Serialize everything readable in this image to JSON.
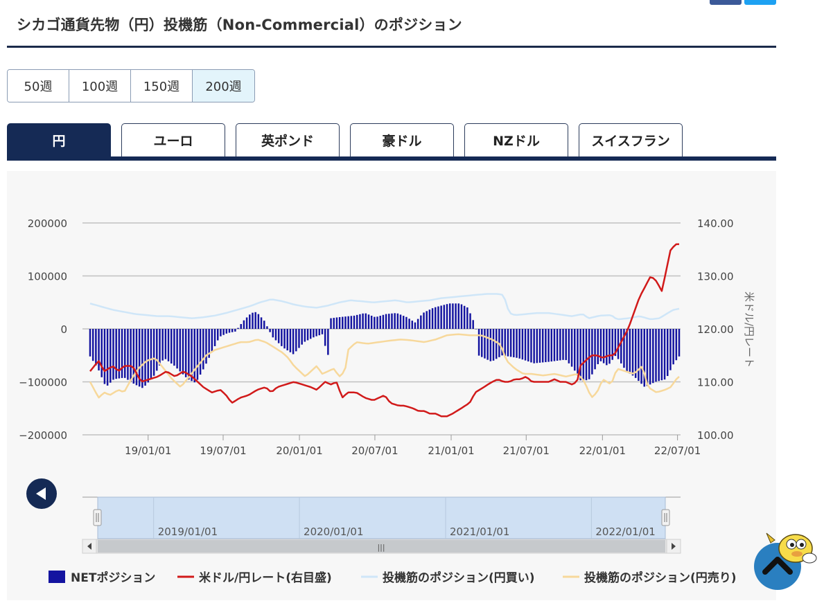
{
  "page": {
    "title": "シカゴ通貨先物（円）投機筋（Non-Commercial）のポジション"
  },
  "periods": [
    {
      "label": "50週",
      "active": false
    },
    {
      "label": "100週",
      "active": false
    },
    {
      "label": "150週",
      "active": false
    },
    {
      "label": "200週",
      "active": true
    }
  ],
  "tabs": [
    {
      "label": "円",
      "active": true
    },
    {
      "label": "ユーロ",
      "active": false
    },
    {
      "label": "英ポンド",
      "active": false
    },
    {
      "label": "豪ドル",
      "active": false
    },
    {
      "label": "NZドル",
      "active": false
    },
    {
      "label": "スイスフラン",
      "active": false
    }
  ],
  "colors": {
    "net": "#1414a0",
    "rate": "#d11a1a",
    "long": "#cfe6f8",
    "short": "#f7d89b",
    "navy": "#152a55",
    "grid": "#c0c0c0"
  },
  "chart_data": {
    "type": "bar+line",
    "grid": true,
    "legend_position": "bottom",
    "start_date": "2018-08-14",
    "weeks": 204,
    "x_ticks": [
      "19/01/01",
      "19/07/01",
      "20/01/01",
      "20/07/01",
      "21/01/01",
      "21/07/01",
      "22/01/01",
      "22/07/01"
    ],
    "y_left": {
      "min": -200000,
      "max": 200000,
      "ticks": [
        "200000",
        "100000",
        "0",
        "−100000",
        "−200000"
      ]
    },
    "y_right": {
      "min": 100,
      "max": 140,
      "ticks": [
        "140.00",
        "130.00",
        "120.00",
        "110.00",
        "100.00"
      ],
      "label": "米ドル/円レート"
    },
    "navigator_ticks": [
      "2019/01/01",
      "2020/01/01",
      "2021/01/01",
      "2022/01/01"
    ],
    "series": [
      {
        "name": "NETポジション",
        "type": "bar",
        "axis": "left",
        "keyframes": [
          [
            0,
            -52000
          ],
          [
            3,
            -75000
          ],
          [
            6,
            -110000
          ],
          [
            9,
            -95000
          ],
          [
            13,
            -92000
          ],
          [
            17,
            -105000
          ],
          [
            20,
            -112000
          ],
          [
            24,
            -90000
          ],
          [
            28,
            -55000
          ],
          [
            32,
            -70000
          ],
          [
            37,
            -95000
          ],
          [
            40,
            -102000
          ],
          [
            43,
            -75000
          ],
          [
            46,
            -45000
          ],
          [
            49,
            -15000
          ],
          [
            52,
            -8000
          ],
          [
            55,
            -5000
          ],
          [
            58,
            15000
          ],
          [
            61,
            30000
          ],
          [
            63,
            32000
          ],
          [
            66,
            15000
          ],
          [
            69,
            -15000
          ],
          [
            73,
            -35000
          ],
          [
            77,
            -48000
          ],
          [
            81,
            -25000
          ],
          [
            85,
            -15000
          ],
          [
            88,
            -10000
          ],
          [
            90,
            -55000
          ],
          [
            91,
            20000
          ],
          [
            94,
            22000
          ],
          [
            100,
            25000
          ],
          [
            104,
            30000
          ],
          [
            108,
            22000
          ],
          [
            112,
            28000
          ],
          [
            116,
            30000
          ],
          [
            120,
            22000
          ],
          [
            123,
            12000
          ],
          [
            126,
            30000
          ],
          [
            130,
            40000
          ],
          [
            136,
            48000
          ],
          [
            140,
            48000
          ],
          [
            143,
            40000
          ],
          [
            146,
            5000
          ],
          [
            147,
            -50000
          ],
          [
            152,
            -62000
          ],
          [
            156,
            -50000
          ],
          [
            162,
            -55000
          ],
          [
            168,
            -65000
          ],
          [
            174,
            -62000
          ],
          [
            180,
            -58000
          ],
          [
            183,
            -75000
          ],
          [
            186,
            -100000
          ],
          [
            189,
            -95000
          ],
          [
            193,
            -60000
          ],
          [
            196,
            -70000
          ],
          [
            199,
            -50000
          ],
          [
            203,
            -80000
          ],
          [
            206,
            -90000
          ],
          [
            210,
            -110000
          ],
          [
            214,
            -100000
          ],
          [
            218,
            -95000
          ],
          [
            221,
            -65000
          ],
          [
            223,
            -52000
          ]
        ],
        "values": []
      },
      {
        "name": "米ドル/円レート(右目盛)",
        "type": "line",
        "axis": "right",
        "keyframes": [
          [
            0,
            112
          ],
          [
            3,
            114
          ],
          [
            5,
            112
          ],
          [
            8,
            113
          ],
          [
            10,
            112
          ],
          [
            12,
            113
          ],
          [
            15,
            113
          ],
          [
            18,
            110
          ],
          [
            21,
            110.5
          ],
          [
            24,
            111
          ],
          [
            27,
            112
          ],
          [
            30,
            111
          ],
          [
            33,
            112
          ],
          [
            36,
            111
          ],
          [
            38,
            110
          ],
          [
            40,
            109
          ],
          [
            43,
            108
          ],
          [
            46,
            108.5
          ],
          [
            48,
            107.5
          ],
          [
            50,
            106
          ],
          [
            53,
            107
          ],
          [
            56,
            107.5
          ],
          [
            59,
            108.5
          ],
          [
            62,
            109
          ],
          [
            64,
            108
          ],
          [
            66,
            109
          ],
          [
            69,
            109.5
          ],
          [
            72,
            110
          ],
          [
            75,
            109.5
          ],
          [
            78,
            109
          ],
          [
            80,
            108.5
          ],
          [
            83,
            110
          ],
          [
            85,
            109.5
          ],
          [
            87,
            110
          ],
          [
            89,
            107
          ],
          [
            91,
            108
          ],
          [
            94,
            108
          ],
          [
            97,
            107
          ],
          [
            100,
            106.5
          ],
          [
            102,
            107
          ],
          [
            104,
            107.5
          ],
          [
            106,
            106
          ],
          [
            109,
            105.5
          ],
          [
            111,
            105.5
          ],
          [
            114,
            105
          ],
          [
            116,
            104.5
          ],
          [
            118,
            104.5
          ],
          [
            120,
            104
          ],
          [
            122,
            104
          ],
          [
            124,
            103.5
          ],
          [
            126,
            103.5
          ],
          [
            128,
            104
          ],
          [
            131,
            105
          ],
          [
            134,
            106
          ],
          [
            136,
            108
          ],
          [
            139,
            109
          ],
          [
            142,
            110
          ],
          [
            144,
            110.5
          ],
          [
            146,
            110
          ],
          [
            148,
            110
          ],
          [
            150,
            110.5
          ],
          [
            152,
            110.5
          ],
          [
            154,
            111
          ],
          [
            156,
            110
          ],
          [
            158,
            110
          ],
          [
            160,
            110
          ],
          [
            162,
            110
          ],
          [
            164,
            110.5
          ],
          [
            166,
            110
          ],
          [
            168,
            110
          ],
          [
            170,
            109.5
          ],
          [
            172,
            110
          ],
          [
            173,
            113
          ],
          [
            175,
            114
          ],
          [
            177,
            115
          ],
          [
            179,
            115
          ],
          [
            181,
            114.5
          ],
          [
            183,
            115
          ],
          [
            185,
            115
          ],
          [
            186,
            116
          ],
          [
            188,
            118
          ],
          [
            190,
            120
          ],
          [
            192,
            123
          ],
          [
            194,
            126
          ],
          [
            196,
            128
          ],
          [
            198,
            130
          ],
          [
            200,
            129
          ],
          [
            202,
            127
          ],
          [
            203,
            130
          ],
          [
            205,
            135
          ],
          [
            206,
            135.5
          ],
          [
            207,
            136
          ],
          [
            208,
            136
          ]
        ],
        "values": []
      },
      {
        "name": "投機筋のポジション(円買い)",
        "type": "line",
        "axis": "left",
        "keyframes": [
          [
            0,
            48000
          ],
          [
            4,
            42000
          ],
          [
            8,
            36000
          ],
          [
            12,
            32000
          ],
          [
            16,
            28000
          ],
          [
            20,
            26000
          ],
          [
            24,
            24000
          ],
          [
            28,
            24000
          ],
          [
            32,
            22000
          ],
          [
            36,
            20000
          ],
          [
            40,
            22000
          ],
          [
            44,
            25000
          ],
          [
            48,
            30000
          ],
          [
            52,
            36000
          ],
          [
            56,
            42000
          ],
          [
            60,
            50000
          ],
          [
            64,
            56000
          ],
          [
            68,
            52000
          ],
          [
            72,
            46000
          ],
          [
            76,
            42000
          ],
          [
            80,
            40000
          ],
          [
            84,
            44000
          ],
          [
            88,
            50000
          ],
          [
            92,
            54000
          ],
          [
            96,
            52000
          ],
          [
            100,
            50000
          ],
          [
            104,
            52000
          ],
          [
            108,
            54000
          ],
          [
            112,
            50000
          ],
          [
            116,
            52000
          ],
          [
            120,
            54000
          ],
          [
            124,
            58000
          ],
          [
            128,
            60000
          ],
          [
            132,
            62000
          ],
          [
            136,
            64000
          ],
          [
            140,
            66000
          ],
          [
            144,
            66000
          ],
          [
            146,
            64000
          ],
          [
            148,
            30000
          ],
          [
            150,
            26000
          ],
          [
            154,
            28000
          ],
          [
            158,
            30000
          ],
          [
            162,
            30000
          ],
          [
            166,
            27000
          ],
          [
            170,
            24000
          ],
          [
            174,
            28000
          ],
          [
            176,
            20000
          ],
          [
            180,
            25000
          ],
          [
            184,
            26000
          ],
          [
            186,
            18000
          ],
          [
            190,
            20000
          ],
          [
            194,
            24000
          ],
          [
            198,
            18000
          ],
          [
            201,
            20000
          ],
          [
            204,
            30000
          ],
          [
            206,
            36000
          ],
          [
            208,
            38000
          ]
        ],
        "values": []
      },
      {
        "name": "投機筋のポジション(円売り)",
        "type": "line",
        "axis": "left",
        "keyframes": [
          [
            0,
            -100000
          ],
          [
            3,
            -130000
          ],
          [
            5,
            -120000
          ],
          [
            7,
            -125000
          ],
          [
            10,
            -115000
          ],
          [
            12,
            -120000
          ],
          [
            14,
            -100000
          ],
          [
            17,
            -75000
          ],
          [
            20,
            -60000
          ],
          [
            23,
            -55000
          ],
          [
            26,
            -75000
          ],
          [
            29,
            -95000
          ],
          [
            32,
            -110000
          ],
          [
            35,
            -90000
          ],
          [
            38,
            -70000
          ],
          [
            41,
            -50000
          ],
          [
            44,
            -40000
          ],
          [
            47,
            -35000
          ],
          [
            50,
            -30000
          ],
          [
            53,
            -25000
          ],
          [
            56,
            -25000
          ],
          [
            59,
            -20000
          ],
          [
            62,
            -25000
          ],
          [
            65,
            -35000
          ],
          [
            68,
            -45000
          ],
          [
            70,
            -55000
          ],
          [
            72,
            -70000
          ],
          [
            74,
            -80000
          ],
          [
            76,
            -90000
          ],
          [
            78,
            -80000
          ],
          [
            80,
            -70000
          ],
          [
            82,
            -85000
          ],
          [
            84,
            -80000
          ],
          [
            86,
            -75000
          ],
          [
            88,
            -90000
          ],
          [
            90,
            -80000
          ],
          [
            91,
            -40000
          ],
          [
            94,
            -25000
          ],
          [
            98,
            -28000
          ],
          [
            102,
            -25000
          ],
          [
            106,
            -22000
          ],
          [
            110,
            -20000
          ],
          [
            114,
            -22000
          ],
          [
            118,
            -25000
          ],
          [
            122,
            -20000
          ],
          [
            126,
            -12000
          ],
          [
            130,
            -10000
          ],
          [
            134,
            -12000
          ],
          [
            138,
            -12000
          ],
          [
            142,
            -20000
          ],
          [
            145,
            -30000
          ],
          [
            147,
            -60000
          ],
          [
            150,
            -75000
          ],
          [
            153,
            -85000
          ],
          [
            156,
            -85000
          ],
          [
            160,
            -88000
          ],
          [
            164,
            -85000
          ],
          [
            168,
            -90000
          ],
          [
            172,
            -85000
          ],
          [
            174,
            -95000
          ],
          [
            175,
            -105000
          ],
          [
            177,
            -130000
          ],
          [
            179,
            -120000
          ],
          [
            181,
            -95000
          ],
          [
            184,
            -105000
          ],
          [
            186,
            -75000
          ],
          [
            189,
            -80000
          ],
          [
            192,
            -85000
          ],
          [
            195,
            -70000
          ],
          [
            197,
            -110000
          ],
          [
            200,
            -120000
          ],
          [
            203,
            -115000
          ],
          [
            205,
            -110000
          ],
          [
            207,
            -95000
          ],
          [
            208,
            -90000
          ]
        ],
        "values": []
      }
    ]
  },
  "legend": [
    {
      "label": "NETポジション"
    },
    {
      "label": "米ドル/円レート(右目盛)"
    },
    {
      "label": "投機筋のポジション(円買い)"
    },
    {
      "label": "投機筋のポジション(円売り)"
    }
  ],
  "navigator": {
    "scroll_grip": "|||"
  }
}
